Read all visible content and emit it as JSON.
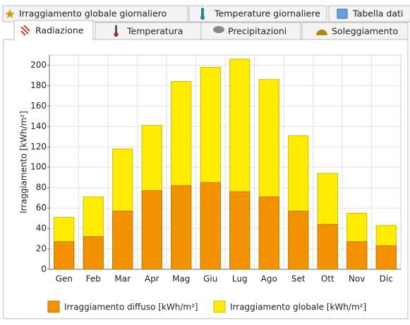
{
  "tabs": {
    "row1": [
      "Irraggiamento globale giornaliero",
      "Temperature giornaliere",
      "Tabella dati"
    ],
    "row2": [
      "Radiazione",
      "Temperatura",
      "Precipitazioni",
      "Soleggiamento"
    ]
  },
  "chart_data": {
    "type": "bar",
    "barmode": "overlay",
    "y_label": "Irraggiamento [kWh/m²]",
    "categories": [
      "Gen",
      "Feb",
      "Mar",
      "Apr",
      "Mag",
      "Giu",
      "Lug",
      "Ago",
      "Set",
      "Ott",
      "Nov",
      "Dic"
    ],
    "series": [
      {
        "name": "Irraggiamento diffuso [kWh/m²]",
        "color": "#f39200",
        "values": [
          27,
          32,
          57,
          77,
          82,
          85,
          76,
          71,
          57,
          44,
          27,
          23
        ]
      },
      {
        "name": "Irraggiamento globale [kWh/m²]",
        "color": "#ffec00",
        "values": [
          51,
          71,
          118,
          141,
          184,
          198,
          206,
          186,
          131,
          94,
          55,
          43
        ]
      }
    ],
    "ylim": [
      0,
      210
    ],
    "yticks": [
      0,
      20,
      40,
      60,
      80,
      100,
      120,
      140,
      160,
      180,
      200
    ],
    "grid": true
  }
}
